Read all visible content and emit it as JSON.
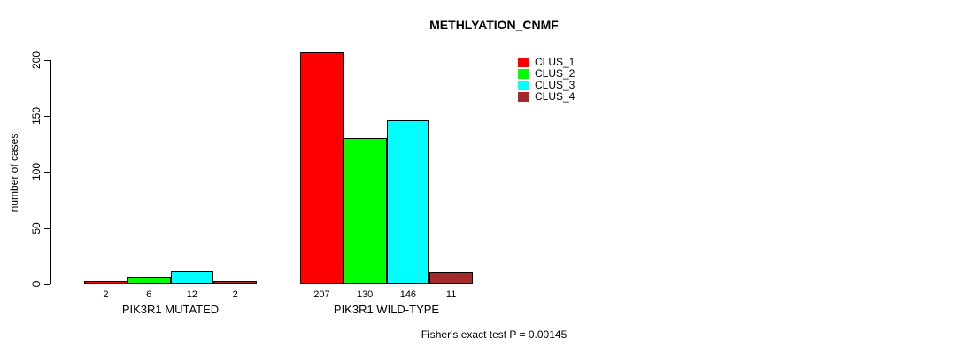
{
  "chart_data": {
    "type": "bar",
    "title": "METHLYATION_CNMF",
    "ylabel": "number of cases",
    "xlabel": "",
    "ylim": [
      0,
      200
    ],
    "yticks": [
      0,
      50,
      100,
      150,
      200
    ],
    "grid": false,
    "legend_position": "top-right",
    "show_value_labels": true,
    "categories": [
      "PIK3R1 MUTATED",
      "PIK3R1 WILD-TYPE"
    ],
    "series": [
      {
        "name": "CLUS_1",
        "color": "#ff0000",
        "values": [
          2,
          207
        ]
      },
      {
        "name": "CLUS_2",
        "color": "#00ff00",
        "values": [
          6,
          130
        ]
      },
      {
        "name": "CLUS_3",
        "color": "#00ffff",
        "values": [
          12,
          146
        ]
      },
      {
        "name": "CLUS_4",
        "color": "#a52a2a",
        "values": [
          2,
          11
        ]
      }
    ],
    "annotation": "Fisher's exact test P = 0.00145"
  },
  "colors": {
    "axis": "#000000",
    "background": "#ffffff",
    "bar_border": "#000000"
  }
}
